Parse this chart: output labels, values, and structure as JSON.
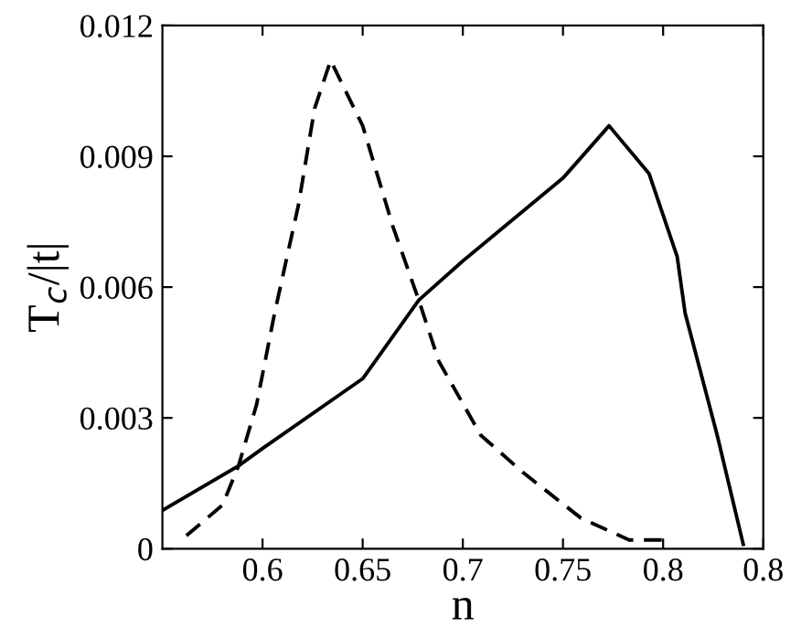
{
  "chart_data": {
    "type": "line",
    "xlabel": "n",
    "ylabel": "T$_{c}$/|t|",
    "xlim": [
      0.55,
      0.85
    ],
    "xticks": [
      0.6,
      0.65,
      0.7,
      0.75,
      0.8,
      {
        "value": 0.85,
        "label": "0.8"
      }
    ],
    "ylim": [
      0,
      0.012
    ],
    "yticks": [
      0,
      0.003,
      0.006,
      0.009,
      0.012
    ],
    "grid": false,
    "legend": false,
    "series": [
      {
        "color": "#000000",
        "line_style": "solid",
        "x": [
          0.55,
          0.588,
          0.6,
          0.65,
          0.678,
          0.7,
          0.75,
          0.773,
          0.793,
          0.807,
          0.811,
          0.827,
          0.84
        ],
        "values": [
          0.00088,
          0.0019,
          0.0023,
          0.0039,
          0.0057,
          0.0066,
          0.0085,
          0.0097,
          0.0086,
          0.0067,
          0.0054,
          0.0026,
          0.0001
        ]
      },
      {
        "color": "#000000",
        "line_style": "dashed",
        "x": [
          0.562,
          0.58,
          0.588,
          0.597,
          0.606,
          0.618,
          0.626,
          0.634,
          0.65,
          0.665,
          0.678,
          0.688,
          0.709,
          0.73,
          0.759,
          0.783,
          0.8
        ],
        "values": [
          0.0003,
          0.001,
          0.0019,
          0.0033,
          0.0054,
          0.0079,
          0.0101,
          0.0112,
          0.0097,
          0.0074,
          0.0057,
          0.0043,
          0.0026,
          0.00175,
          0.0007,
          0.0002,
          0.0002
        ]
      }
    ]
  }
}
